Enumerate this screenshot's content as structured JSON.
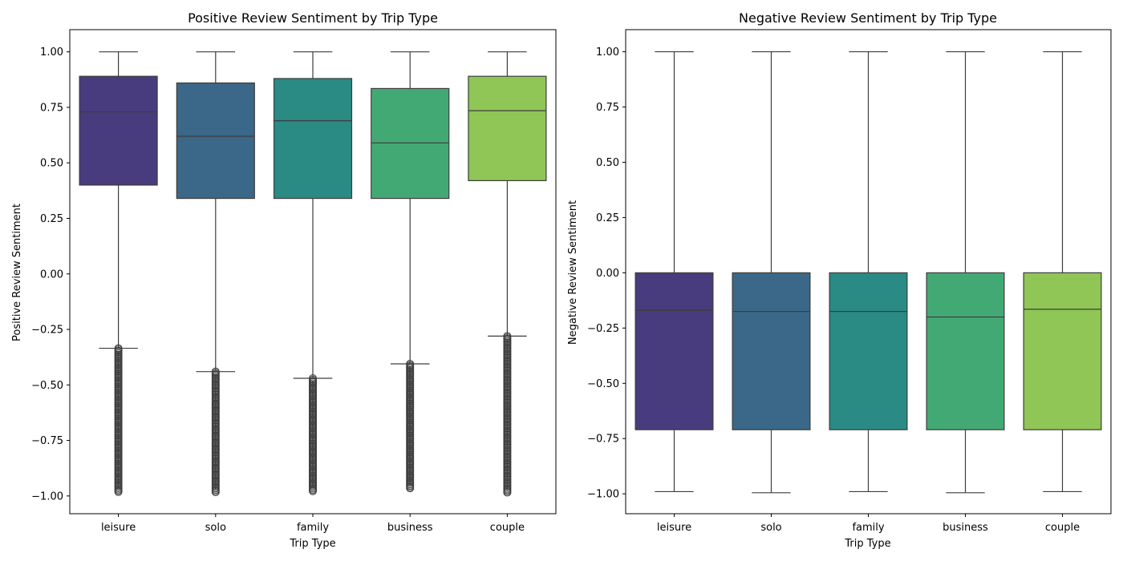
{
  "chart_data": [
    {
      "type": "box",
      "title": "Positive Review Sentiment by Trip Type",
      "xlabel": "Trip Type",
      "ylabel": "Positive Review Sentiment",
      "ylim": [
        -1.08,
        1.1
      ],
      "yticks": [
        "1.00",
        "0.75",
        "0.50",
        "0.25",
        "0.00",
        "−0.25",
        "−0.50",
        "−0.75",
        "−1.00"
      ],
      "ytick_values": [
        1.0,
        0.75,
        0.5,
        0.25,
        0.0,
        -0.25,
        -0.5,
        -0.75,
        -1.0
      ],
      "categories": [
        "leisure",
        "solo",
        "family",
        "business",
        "couple"
      ],
      "colors": [
        "#483c7e",
        "#3b6788",
        "#2a8a84",
        "#43a974",
        "#8fc655"
      ],
      "boxes": [
        {
          "whisker_low": -0.335,
          "q1": 0.4,
          "median": 0.73,
          "q3": 0.89,
          "whisker_high": 1.0,
          "outliers_range": [
            -0.985,
            -0.335
          ]
        },
        {
          "whisker_low": -0.44,
          "q1": 0.34,
          "median": 0.62,
          "q3": 0.86,
          "whisker_high": 1.0,
          "outliers_range": [
            -0.985,
            -0.44
          ]
        },
        {
          "whisker_low": -0.47,
          "q1": 0.34,
          "median": 0.69,
          "q3": 0.88,
          "whisker_high": 1.0,
          "outliers_range": [
            -0.98,
            -0.47
          ]
        },
        {
          "whisker_low": -0.405,
          "q1": 0.34,
          "median": 0.59,
          "q3": 0.835,
          "whisker_high": 1.0,
          "outliers_range": [
            -0.97,
            -0.405
          ]
        },
        {
          "whisker_low": -0.28,
          "q1": 0.42,
          "median": 0.735,
          "q3": 0.89,
          "whisker_high": 1.0,
          "outliers_range": [
            -0.985,
            -0.28
          ]
        }
      ],
      "grid": false
    },
    {
      "type": "box",
      "title": "Negative Review Sentiment by Trip Type",
      "xlabel": "Trip Type",
      "ylabel": "Negative Review Sentiment",
      "ylim": [
        -1.09,
        1.1
      ],
      "yticks": [
        "1.00",
        "0.75",
        "0.50",
        "0.25",
        "0.00",
        "−0.25",
        "−0.50",
        "−0.75",
        "−1.00"
      ],
      "ytick_values": [
        1.0,
        0.75,
        0.5,
        0.25,
        0.0,
        -0.25,
        -0.5,
        -0.75,
        -1.0
      ],
      "categories": [
        "leisure",
        "solo",
        "family",
        "business",
        "couple"
      ],
      "colors": [
        "#483c7e",
        "#3b6788",
        "#2a8a84",
        "#43a974",
        "#8fc655"
      ],
      "boxes": [
        {
          "whisker_low": -0.99,
          "q1": -0.71,
          "median": -0.17,
          "q3": 0.0,
          "whisker_high": 1.0,
          "outliers_range": null
        },
        {
          "whisker_low": -0.995,
          "q1": -0.71,
          "median": -0.175,
          "q3": 0.0,
          "whisker_high": 1.0,
          "outliers_range": null
        },
        {
          "whisker_low": -0.99,
          "q1": -0.71,
          "median": -0.175,
          "q3": 0.0,
          "whisker_high": 1.0,
          "outliers_range": null
        },
        {
          "whisker_low": -0.995,
          "q1": -0.71,
          "median": -0.2,
          "q3": 0.0,
          "whisker_high": 1.0,
          "outliers_range": null
        },
        {
          "whisker_low": -0.99,
          "q1": -0.71,
          "median": -0.165,
          "q3": 0.0,
          "whisker_high": 1.0,
          "outliers_range": null
        }
      ],
      "grid": false
    }
  ]
}
